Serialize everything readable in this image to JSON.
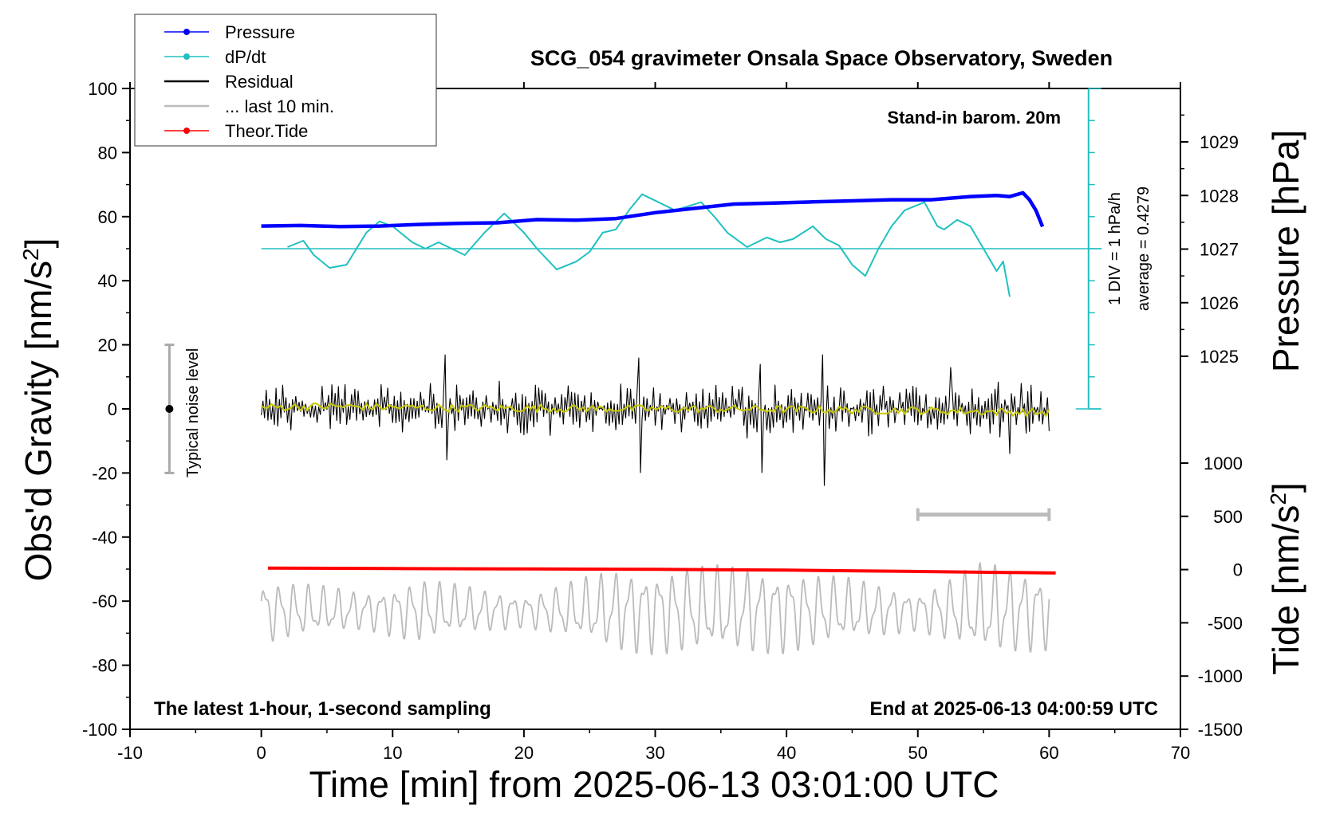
{
  "chart_data": {
    "type": "line",
    "title": "SCG_054 gravimeter Onsala Space Observatory, Sweden",
    "xlabel": "Time [min] from 2025-06-13 03:01:00 UTC",
    "ylabel_left": "Obs'd Gravity [nm/s",
    "ylabel_left_sup": "2",
    "ylabel_left_end": "]",
    "ylabel_right_pressure": "Pressure [hPa]",
    "ylabel_right_tide": "Tide [nm/s",
    "ylabel_right_tide_sup": "2",
    "ylabel_right_tide_end": "]",
    "xlim": [
      -10,
      70
    ],
    "ylim": [
      -100,
      100
    ],
    "x_ticks": [
      "-10",
      "0",
      "10",
      "20",
      "30",
      "40",
      "50",
      "60",
      "70"
    ],
    "y_ticks": [
      "100",
      "80",
      "60",
      "40",
      "20",
      "0",
      "-20",
      "-40",
      "-60",
      "-80",
      "-100"
    ],
    "pressure_ticks": [
      "1029",
      "1028",
      "1027",
      "1026",
      "1025"
    ],
    "tide_ticks": [
      "1000",
      "500",
      "0",
      "-500",
      "-1000",
      "-1500"
    ],
    "pressure_range": [
      1024.0,
      1030.0
    ],
    "tide_range": [
      -1500,
      1000
    ],
    "legend": {
      "position": "top-left",
      "entries": [
        {
          "label": "Pressure",
          "color": "#0000ff",
          "marker": "dot"
        },
        {
          "label": "dP/dt",
          "color": "#20c0c0",
          "marker": "dot"
        },
        {
          "label": "Residual",
          "color": "#000000",
          "marker": "none"
        },
        {
          "label": "... last 10 min.",
          "color": "#bbbbbb",
          "marker": "none"
        },
        {
          "label": "Theor.Tide",
          "color": "#ff0000",
          "marker": "dot"
        }
      ]
    },
    "annotations": {
      "barometer": "Stand-in barom. 20m",
      "dpdt_scale": "1 DIV = 1 hPa/h",
      "dpdt_average": "average = 0.4279",
      "noise_label": "Typical noise level",
      "bottom_left": "The latest 1-hour, 1-second sampling",
      "bottom_right": "End at 2025-06-13 04:00:59 UTC"
    },
    "noise_level": {
      "x": -7,
      "center": 0,
      "half_range": 20
    },
    "last_10_min_bar": {
      "x_start": 50,
      "x_end": 60,
      "y": -33
    },
    "dpdt_baseline": 50,
    "series": [
      {
        "name": "Pressure",
        "unit": "hPa",
        "color": "#0000ff",
        "x": [
          0,
          3,
          6,
          9,
          12,
          15,
          18,
          21,
          24,
          27,
          30,
          33,
          36,
          39,
          42,
          45,
          48,
          51,
          54,
          56,
          57,
          58,
          58.5,
          59,
          59.5
        ],
        "y": [
          1027.43,
          1027.44,
          1027.42,
          1027.43,
          1027.46,
          1027.48,
          1027.49,
          1027.55,
          1027.54,
          1027.57,
          1027.68,
          1027.76,
          1027.84,
          1027.86,
          1027.88,
          1027.9,
          1027.92,
          1027.92,
          1027.98,
          1028.0,
          1027.98,
          1028.05,
          1027.92,
          1027.72,
          1027.42
        ]
      },
      {
        "name": "dP/dt",
        "unit": "nm/s2-scaled",
        "color": "#20c0c0",
        "x": [
          2,
          3.2,
          4,
          5.2,
          6.5,
          8,
          9,
          10,
          11.5,
          12.5,
          13.5,
          14.5,
          15.5,
          17,
          18.5,
          20,
          21,
          22.5,
          24,
          25,
          26,
          27,
          28,
          29,
          30,
          31.5,
          33.5,
          34.5,
          35.5,
          37,
          38.5,
          39.5,
          40.5,
          42,
          43,
          44,
          45,
          46,
          47,
          48,
          49,
          50.5,
          51.5,
          52,
          53,
          54,
          55,
          56,
          56.5,
          57
        ],
        "y": [
          50.5,
          52.5,
          48,
          44,
          45,
          55,
          58.5,
          57,
          52,
          50,
          52,
          50,
          48,
          55,
          61,
          55,
          50,
          43.5,
          46,
          49,
          55,
          56,
          62,
          67,
          65,
          62,
          64.5,
          60,
          55,
          50.5,
          53.5,
          52,
          53,
          57,
          53,
          51,
          45,
          41.5,
          50,
          57,
          62,
          64.5,
          57,
          56,
          59,
          57,
          50,
          43,
          46,
          35
        ]
      },
      {
        "name": "Residual",
        "unit": "nm/s2",
        "color": "#000000",
        "x_start": 0,
        "x_end": 60,
        "points": 480,
        "band": 8,
        "spikes": [
          {
            "x": 14.0,
            "y": 17
          },
          {
            "x": 14.1,
            "y": -16
          },
          {
            "x": 28.8,
            "y": 16
          },
          {
            "x": 28.9,
            "y": -20
          },
          {
            "x": 38.0,
            "y": 14
          },
          {
            "x": 38.1,
            "y": -20
          },
          {
            "x": 42.8,
            "y": 17
          },
          {
            "x": 42.9,
            "y": -24
          },
          {
            "x": 52.5,
            "y": 13
          },
          {
            "x": 57.0,
            "y": -14
          }
        ]
      },
      {
        "name": "Residual smoothed",
        "unit": "nm/s2",
        "color": "#c8c800",
        "x": [
          0,
          5,
          10,
          15,
          20,
          25,
          30,
          35,
          40,
          45,
          50,
          55,
          60
        ],
        "y": [
          0.5,
          0.8,
          0.5,
          0.3,
          0.2,
          0.1,
          0.0,
          0.0,
          -0.2,
          -0.3,
          -0.5,
          -0.8,
          -1.2
        ]
      },
      {
        "name": "... last 10 min.",
        "unit": "nm/s2",
        "color": "#bbbbbb",
        "x_start": 0,
        "x_end": 60,
        "center": -63,
        "amplitude": 9,
        "cycles_per_min": 0.9,
        "envelope": [
          [
            0,
            1.0
          ],
          [
            8,
            0.6
          ],
          [
            12,
            1.0
          ],
          [
            20,
            0.5
          ],
          [
            27,
            1.3
          ],
          [
            35,
            1.4
          ],
          [
            40,
            1.3
          ],
          [
            45,
            1.0
          ],
          [
            50,
            0.6
          ],
          [
            55,
            1.5
          ],
          [
            60,
            1.2
          ]
        ]
      },
      {
        "name": "Theor.Tide",
        "unit": "nm/s2",
        "color": "#ff0000",
        "x": [
          0.5,
          10,
          20,
          30,
          40,
          50,
          60.5
        ],
        "y": [
          14,
          10,
          6,
          2,
          -5,
          -18,
          -32
        ]
      }
    ]
  }
}
